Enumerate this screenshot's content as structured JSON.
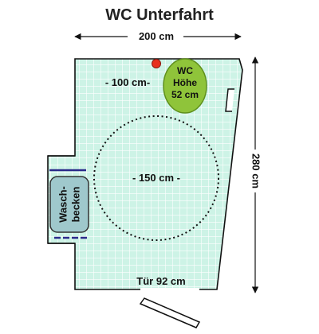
{
  "title": "WC Unterfahrt",
  "dimensions": {
    "width": "200 cm",
    "depth": "280 cm",
    "clearance_to_wc": "- 100 cm-",
    "turning_circle": "- 150 cm -",
    "door": "Tür 92 cm"
  },
  "wc": {
    "line1": "WC",
    "line2": "Höhe",
    "line3": "52 cm"
  },
  "sink": {
    "line1": "Wasch-",
    "line2": "becken"
  },
  "colors": {
    "floor": "#cdf3e6",
    "tile_grid": "#ffffff",
    "wall": "#111111",
    "wc_fill": "#8fc43a",
    "wc_stroke": "#5f8f1c",
    "sink_fill": "#9fc8cc",
    "sink_stroke": "#333333",
    "grab_bar": "#2a2a8a",
    "alarm_button": "#e8301e",
    "turning_circle": "#111111"
  }
}
